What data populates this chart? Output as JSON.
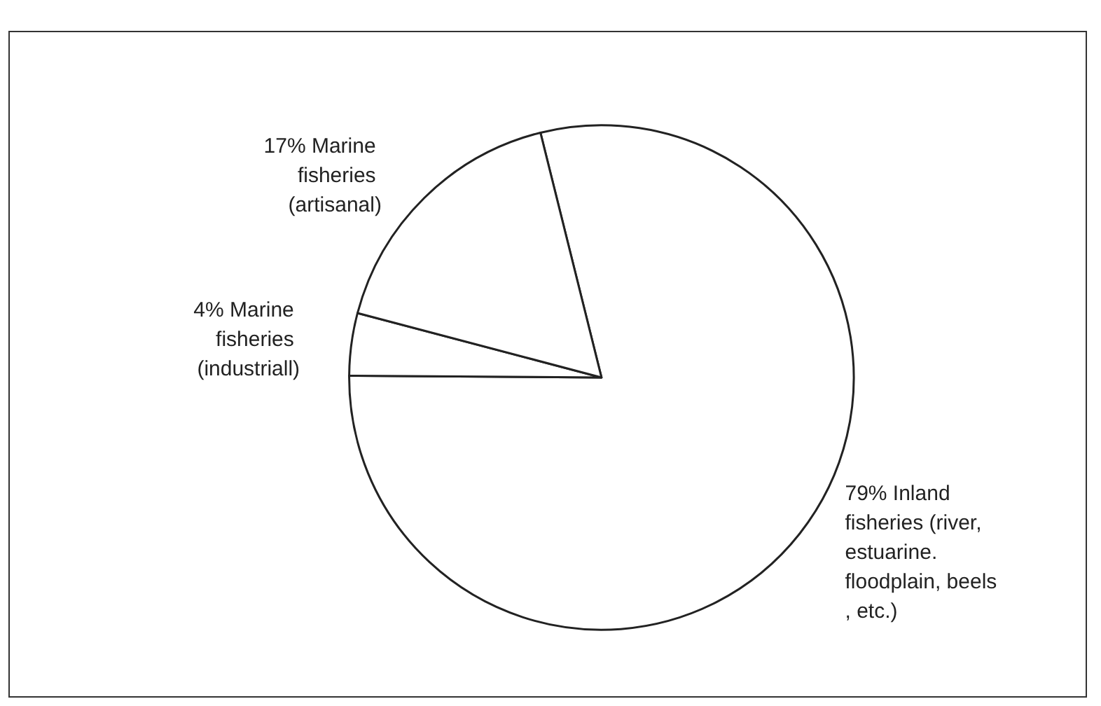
{
  "chart_data": {
    "type": "pie",
    "categories": [
      "79% Inland fisheries (river, estuarine. floodplain, beels, etc.)",
      "4% Marine fisheries (industriall)",
      "17% Marine fisheries (artisanal)"
    ],
    "values": [
      79,
      4,
      17
    ],
    "colors": [
      "#ffffff",
      "#ffffff",
      "#ffffff"
    ],
    "legend": false
  }
}
